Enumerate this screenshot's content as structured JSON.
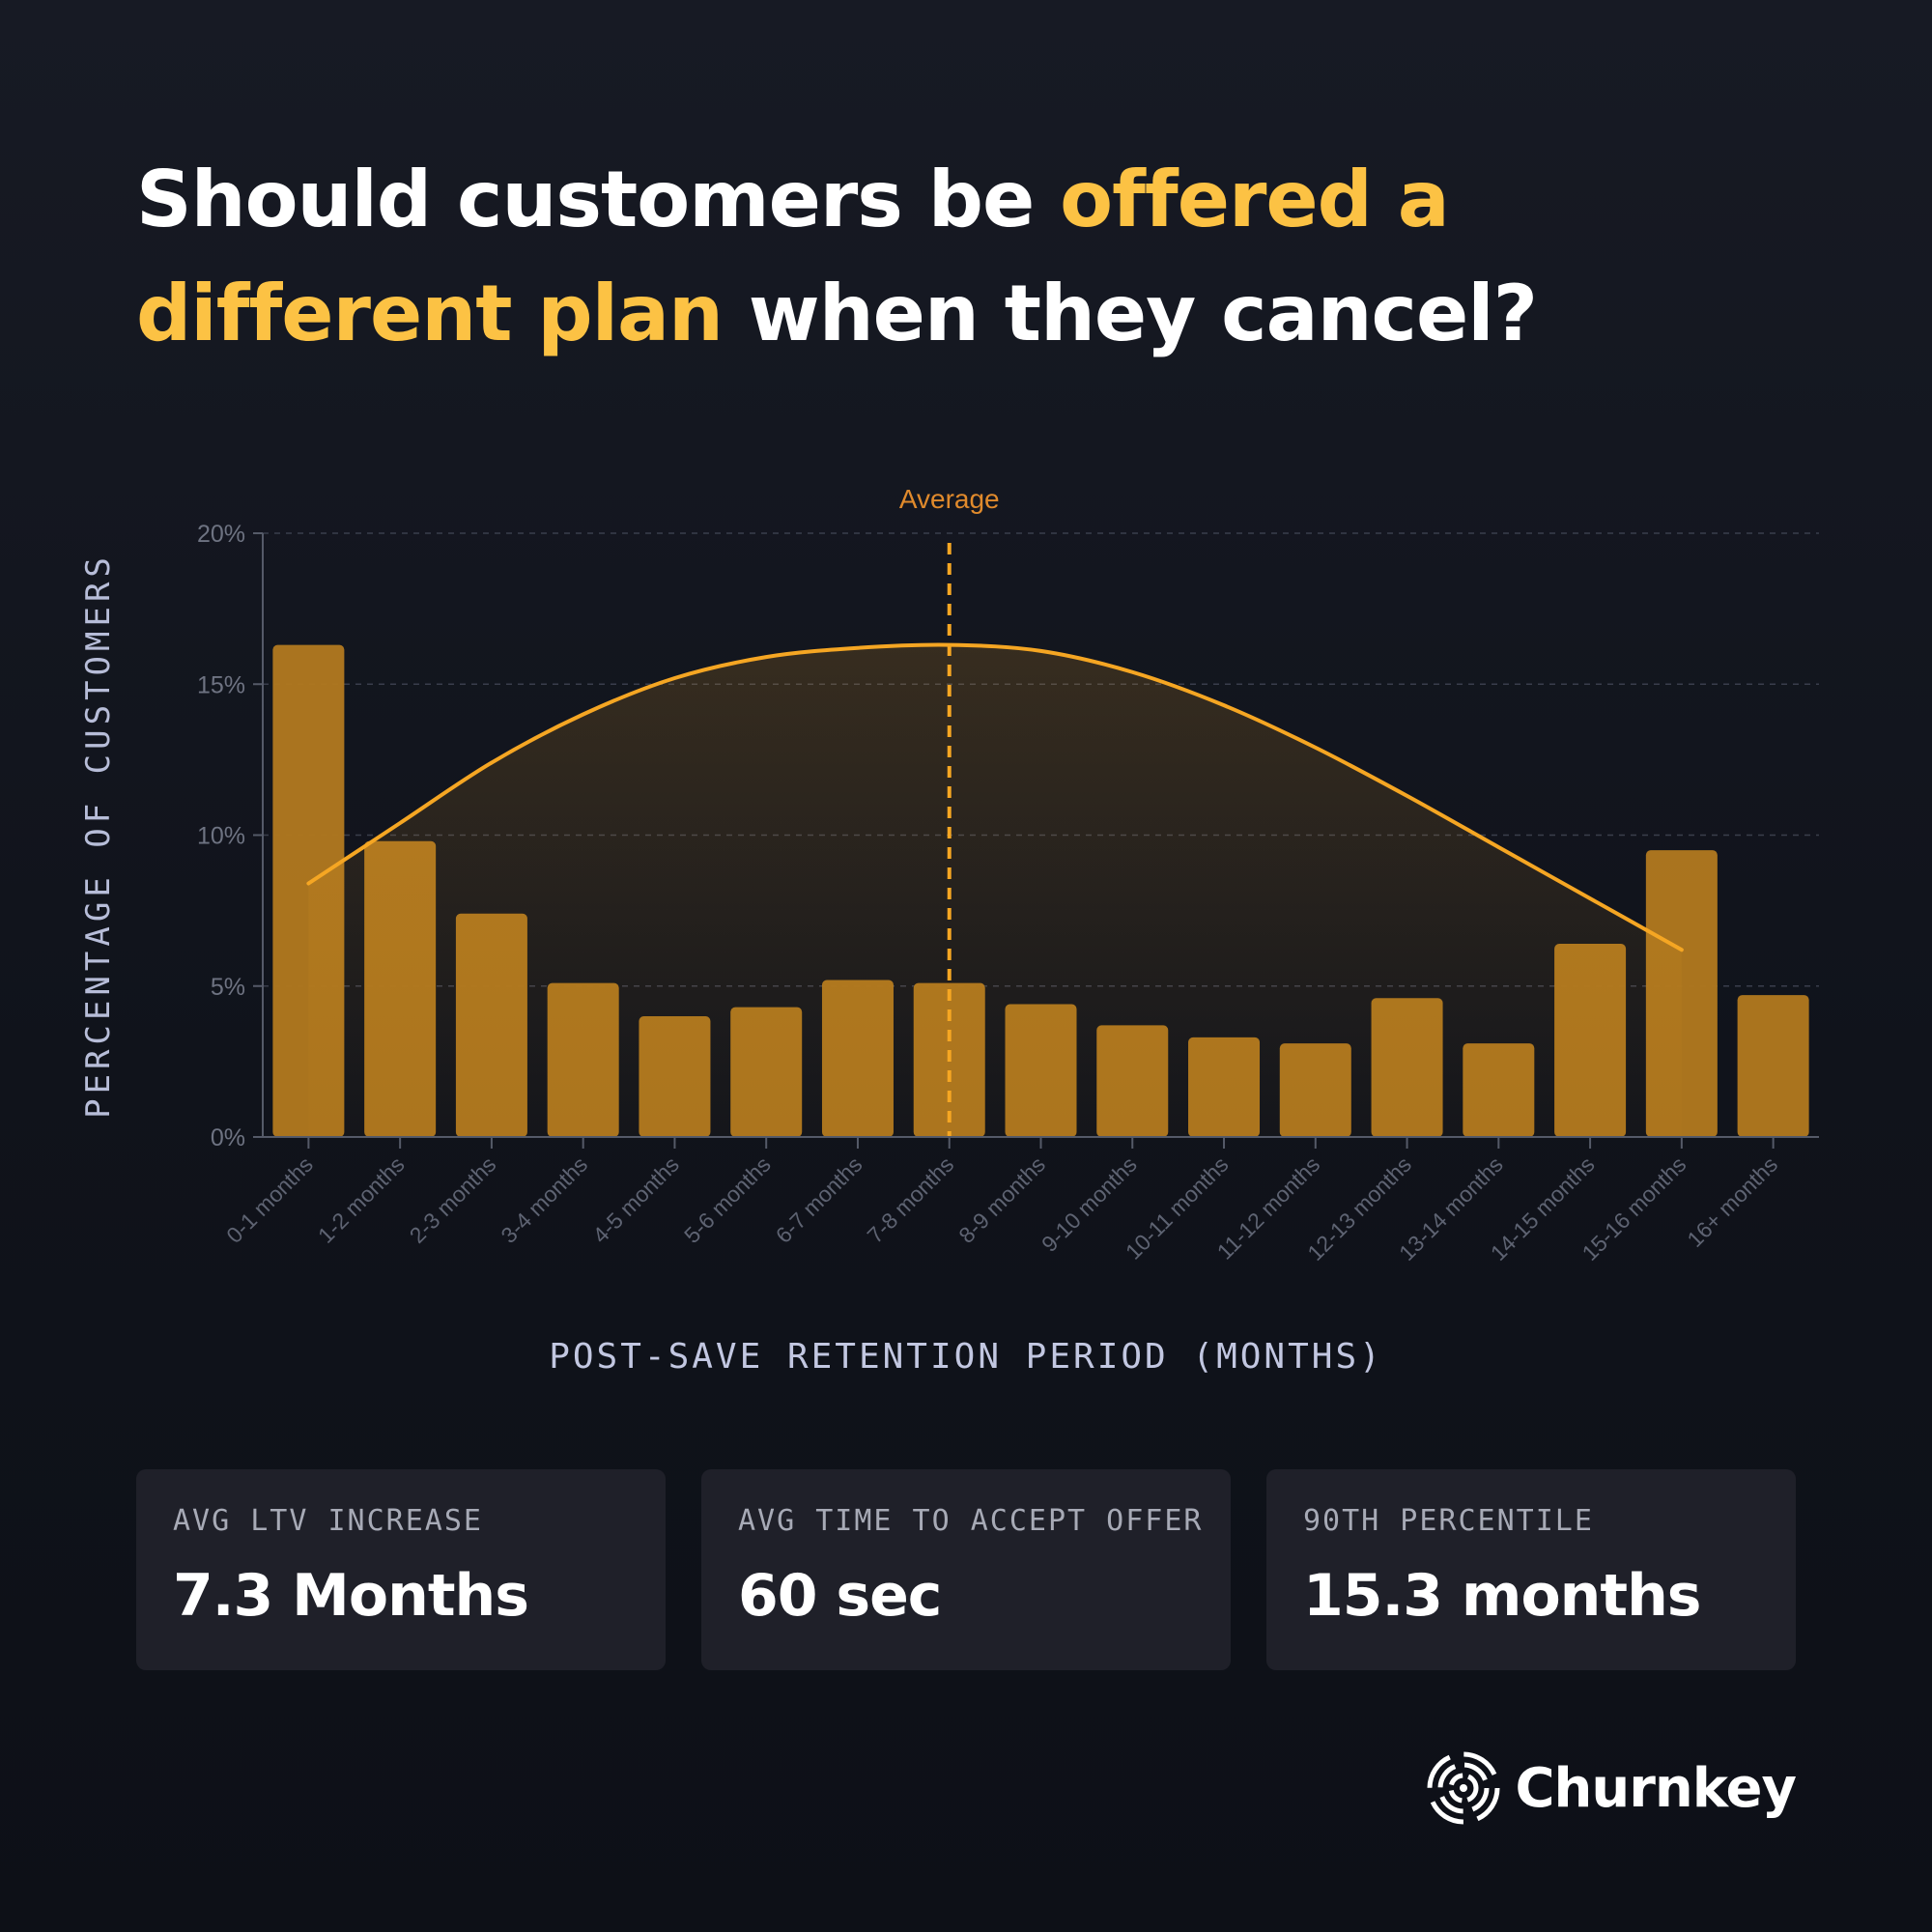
{
  "headline": {
    "part1": "Should customers be ",
    "highlight": "offered a different plan",
    "part2": " when they cancel?"
  },
  "colors": {
    "accent": "#fcc244",
    "bar": "#b0781f",
    "curve": "#f5a623",
    "average_line": "#f5a623",
    "background": "#12151d",
    "card": "#1f2029"
  },
  "chart_data": {
    "type": "bar",
    "ylabel": "PERCENTAGE OF CUSTOMERS",
    "xlabel": "POST-SAVE RETENTION PERIOD (MONTHS)",
    "ylim": [
      0,
      20
    ],
    "yticks": [
      0,
      5,
      10,
      15,
      20
    ],
    "ytick_labels": [
      "0%",
      "5%",
      "10%",
      "15%",
      "20%"
    ],
    "grid": true,
    "categories": [
      "0-1 months",
      "1-2 months",
      "2-3 months",
      "3-4 months",
      "4-5 months",
      "5-6 months",
      "6-7 months",
      "7-8 months",
      "8-9 months",
      "9-10 months",
      "10-11 months",
      "11-12 months",
      "12-13 months",
      "13-14 months",
      "14-15 months",
      "15-16 months",
      "16+ months"
    ],
    "values": [
      16.3,
      9.8,
      7.4,
      5.1,
      4.0,
      4.3,
      5.2,
      5.1,
      4.4,
      3.7,
      3.3,
      3.1,
      4.6,
      3.1,
      6.4,
      9.5,
      4.7
    ],
    "overlay_curve": {
      "type": "line",
      "x_start": "0-1 months",
      "x_end": "15-16 months",
      "values": [
        8.4,
        10.4,
        12.4,
        14.0,
        15.2,
        15.9,
        16.2,
        16.3,
        16.1,
        15.4,
        14.3,
        12.9,
        11.3,
        9.6,
        7.9,
        6.2
      ]
    },
    "reference_line": {
      "label": "Average",
      "category": "7-8 months",
      "style": "dashed"
    }
  },
  "stats": [
    {
      "label": "AVG LTV INCREASE",
      "value": "7.3 Months"
    },
    {
      "label": "AVG TIME TO ACCEPT OFFER",
      "value": "60 sec"
    },
    {
      "label": "90TH PERCENTILE",
      "value": "15.3 months"
    }
  ],
  "brand": {
    "name": "Churnkey",
    "logo_icon": "churnkey-logo-icon"
  }
}
